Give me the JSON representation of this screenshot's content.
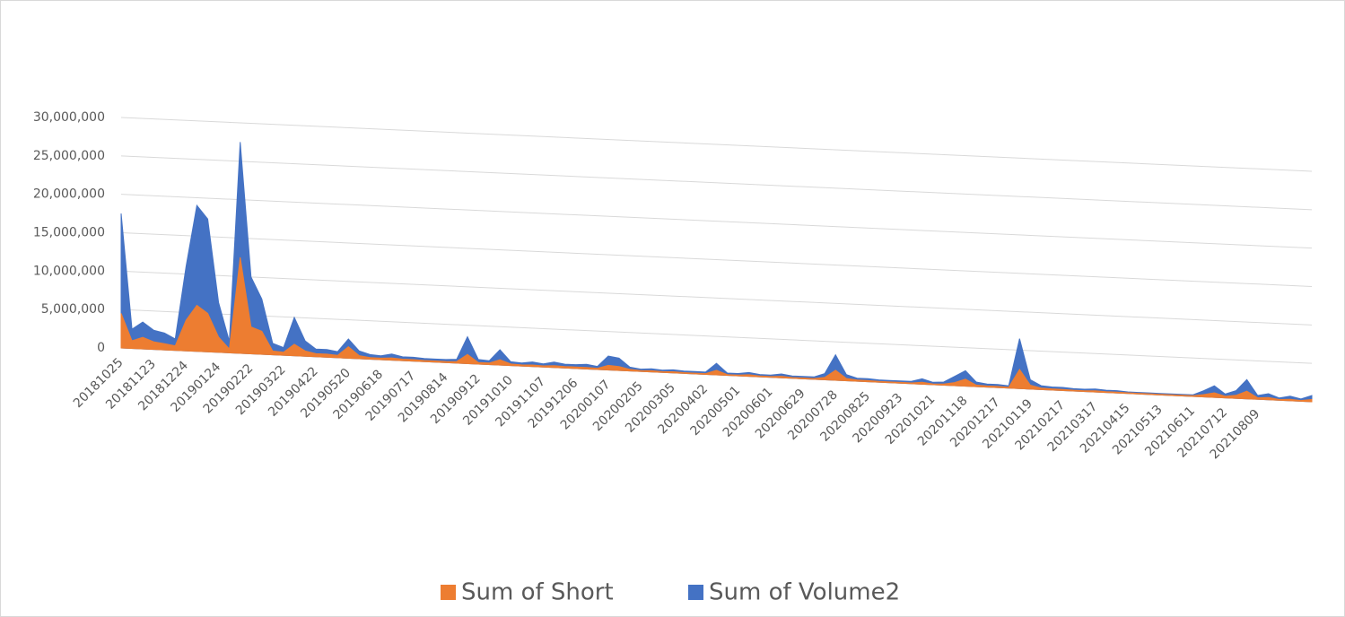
{
  "chart_data": {
    "type": "area3d",
    "categories": [
      "20181025",
      null,
      null,
      "20181123",
      null,
      null,
      "20181224",
      null,
      null,
      "20190124",
      null,
      null,
      "20190222",
      null,
      null,
      "20190322",
      null,
      null,
      "20190422",
      null,
      null,
      "20190520",
      null,
      null,
      "20190618",
      null,
      null,
      "20190717",
      null,
      null,
      "20190814",
      null,
      null,
      "20190912",
      null,
      null,
      "20191010",
      null,
      null,
      "20191107",
      null,
      null,
      "20191206",
      null,
      null,
      "20200107",
      null,
      null,
      "20200205",
      null,
      null,
      "20200305",
      null,
      null,
      "20200402",
      null,
      null,
      "20200501",
      null,
      null,
      "20200601",
      null,
      null,
      "20200629",
      null,
      null,
      "20200728",
      null,
      null,
      "20200825",
      null,
      null,
      "20200923",
      null,
      null,
      "20201021",
      null,
      null,
      "20201118",
      null,
      null,
      "20201217",
      null,
      null,
      "20210119",
      null,
      null,
      "20210217",
      null,
      null,
      "20210317",
      null,
      null,
      "20210415",
      null,
      null,
      "20210513",
      null,
      null,
      "20210611",
      null,
      null,
      "20210712",
      null,
      null,
      "20210809",
      null,
      null,
      null,
      null,
      null
    ],
    "series": [
      {
        "name": "Sum of Volume2",
        "color": "#4472C4",
        "values": [
          17500000,
          2500000,
          3500000,
          2500000,
          2200000,
          1500000,
          11000000,
          19000000,
          17300000,
          6500000,
          1500000,
          27500000,
          10000000,
          7200000,
          1500000,
          1000000,
          5000000,
          2000000,
          1000000,
          1000000,
          800000,
          2500000,
          1000000,
          600000,
          500000,
          800000,
          500000,
          500000,
          400000,
          400000,
          400000,
          500000,
          3500000,
          600000,
          500000,
          2000000,
          500000,
          400000,
          600000,
          400000,
          700000,
          500000,
          500000,
          600000,
          400000,
          1800000,
          1600000,
          500000,
          300000,
          400000,
          300000,
          400000,
          300000,
          300000,
          300000,
          1500000,
          300000,
          300000,
          500000,
          300000,
          300000,
          500000,
          300000,
          300000,
          300000,
          800000,
          3300000,
          800000,
          400000,
          400000,
          300000,
          300000,
          300000,
          300000,
          700000,
          300000,
          400000,
          1200000,
          2000000,
          600000,
          400000,
          400000,
          300000,
          6500000,
          1200000,
          500000,
          400000,
          400000,
          300000,
          300000,
          400000,
          300000,
          300000,
          200000,
          200000,
          200000,
          200000,
          200000,
          200000,
          200000,
          800000,
          1500000,
          500000,
          1000000,
          2500000,
          500000,
          800000,
          300000,
          600000,
          300000,
          800000
        ]
      },
      {
        "name": "Sum of Short",
        "color": "#ED7D31",
        "values": [
          4500000,
          1000000,
          1500000,
          1000000,
          800000,
          600000,
          4000000,
          6000000,
          5000000,
          2000000,
          500000,
          12500000,
          3500000,
          3000000,
          500000,
          400000,
          1500000,
          700000,
          400000,
          400000,
          300000,
          1500000,
          400000,
          200000,
          200000,
          300000,
          200000,
          200000,
          150000,
          150000,
          150000,
          200000,
          1200000,
          200000,
          200000,
          700000,
          200000,
          150000,
          200000,
          150000,
          250000,
          200000,
          200000,
          200000,
          150000,
          600000,
          500000,
          200000,
          100000,
          150000,
          100000,
          150000,
          100000,
          100000,
          100000,
          600000,
          100000,
          100000,
          200000,
          100000,
          100000,
          200000,
          100000,
          100000,
          100000,
          300000,
          1300000,
          300000,
          150000,
          150000,
          100000,
          100000,
          100000,
          100000,
          250000,
          100000,
          150000,
          400000,
          900000,
          200000,
          150000,
          150000,
          100000,
          2500000,
          500000,
          200000,
          150000,
          150000,
          100000,
          100000,
          150000,
          100000,
          100000,
          80000,
          80000,
          80000,
          80000,
          80000,
          80000,
          80000,
          300000,
          600000,
          200000,
          400000,
          1000000,
          200000,
          300000,
          100000,
          200000,
          100000,
          300000
        ]
      }
    ],
    "ylim": [
      0,
      30000000
    ],
    "yticks": [
      0,
      {
        "value": 5000000,
        "label": "5,000,000"
      },
      {
        "value": 10000000,
        "label": "10,000,000"
      },
      {
        "value": 15000000,
        "label": "15,000,000"
      },
      {
        "value": 20000000,
        "label": "20,000,000"
      },
      {
        "value": 25000000,
        "label": "25,000,000"
      },
      {
        "value": 30000000,
        "label": "30,000,000"
      }
    ],
    "grid": true,
    "legend": "bottom"
  }
}
